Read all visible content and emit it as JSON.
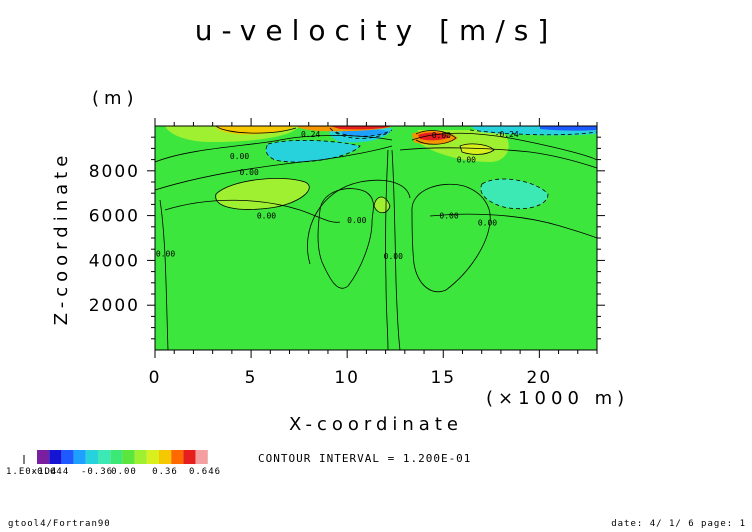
{
  "chart_data": {
    "type": "contour",
    "title": "u-velocity [m/s]",
    "xlabel": "X-coordinate",
    "x_unit": "(×1000 m)",
    "ylabel": "Z-coordinate",
    "y_unit": "(m)",
    "xlim": [
      0,
      23
    ],
    "ylim": [
      0,
      10000
    ],
    "x_ticks": [
      0,
      5,
      10,
      15,
      20
    ],
    "y_ticks": [
      2000,
      4000,
      6000,
      8000
    ],
    "contour_interval_label": "CONTOUR INTERVAL = 1.200E-01",
    "contour_labels": [
      {
        "text": "0.24",
        "x": 8.1,
        "y": 9650
      },
      {
        "text": "0.00",
        "x": 4.4,
        "y": 8650
      },
      {
        "text": "0.00",
        "x": 4.9,
        "y": 7950
      },
      {
        "text": "0.00",
        "x": 5.8,
        "y": 6000
      },
      {
        "text": "0.00",
        "x": 0.55,
        "y": 4300
      },
      {
        "text": "0.00",
        "x": 10.5,
        "y": 5800
      },
      {
        "text": "0.00",
        "x": 12.4,
        "y": 4200
      },
      {
        "text": "0.00",
        "x": 15.3,
        "y": 6000
      },
      {
        "text": "0.00",
        "x": 17.3,
        "y": 5700
      },
      {
        "text": "0.00",
        "x": 14.9,
        "y": 9600
      },
      {
        "text": "0.00",
        "x": 16.2,
        "y": 8500
      },
      {
        "text": "-0.24",
        "x": 18.3,
        "y": 9650
      }
    ],
    "colorbar": {
      "tick_labels": [
        "-0.644",
        "-0.36",
        "0.00",
        "0.36",
        "0.646"
      ],
      "colors": [
        "#7a1fa0",
        "#1414d2",
        "#1e5aff",
        "#1ea0ff",
        "#28d2dc",
        "#3ce8b4",
        "#3ce878",
        "#5ae63c",
        "#a0f032",
        "#d7f01e",
        "#f5c800",
        "#ff6a00",
        "#e61e1e",
        "#f5a0a0"
      ],
      "under_label": "1.E0x1D4"
    },
    "palette": {
      "background_green": "#3de63c",
      "pale_green": "#a0f032",
      "cyan": "#28d2dc",
      "orange": "#f5b400",
      "red": "#e61e1e",
      "blue": "#1e5aff"
    }
  },
  "footer": {
    "left": "gtool4/Fortran90",
    "right": "date: 4/ 1/ 6 page: 1"
  }
}
